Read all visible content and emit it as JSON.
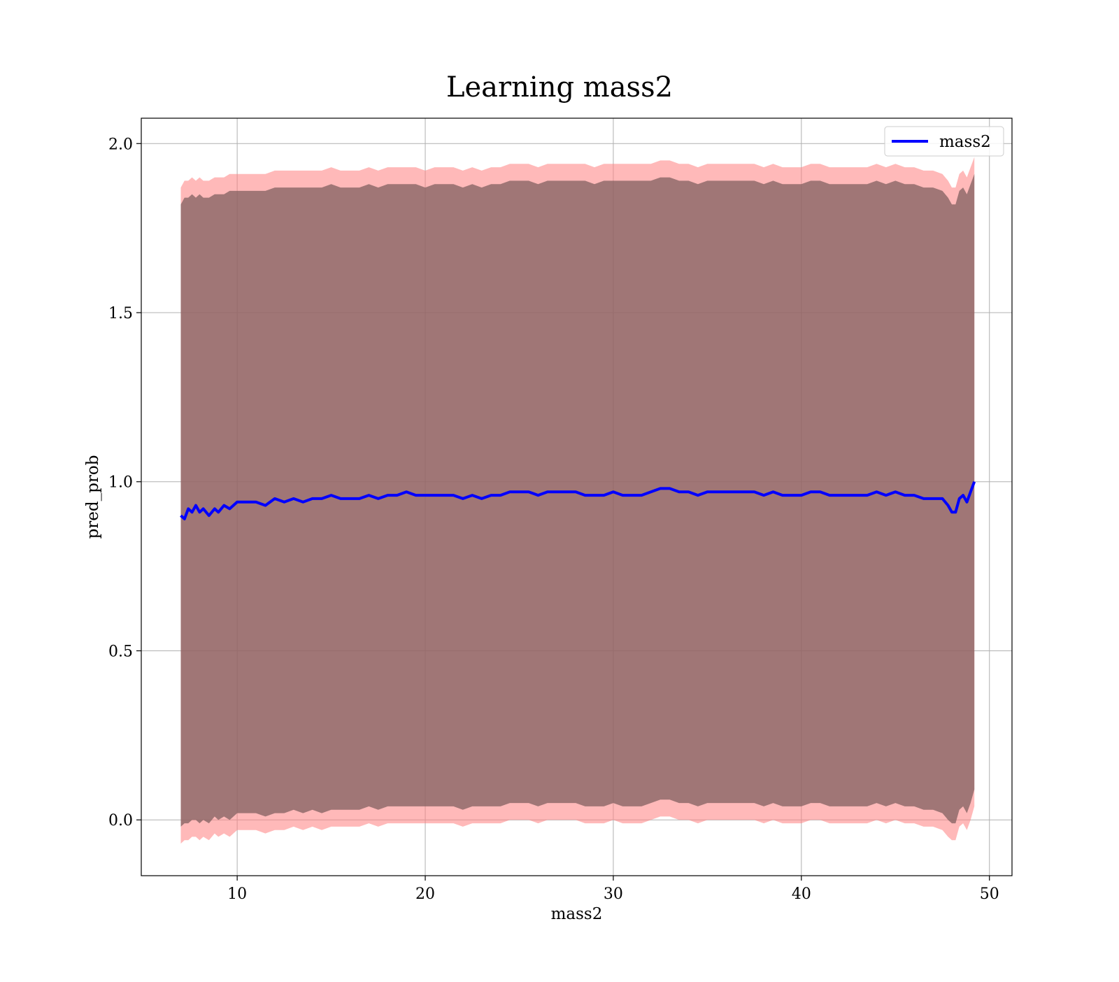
{
  "chart_data": {
    "type": "line",
    "title": "Learning mass2",
    "xlabel": "mass2",
    "ylabel": "pred_prob",
    "xlim": [
      4.9,
      51.2
    ],
    "ylim": [
      -0.165,
      2.075
    ],
    "xticks": [
      10,
      20,
      30,
      40,
      50
    ],
    "yticks": [
      0.0,
      0.5,
      1.0,
      1.5,
      2.0
    ],
    "xtick_labels": [
      "10",
      "20",
      "30",
      "40",
      "50"
    ],
    "ytick_labels": [
      "0.0",
      "0.5",
      "1.0",
      "1.5",
      "2.0"
    ],
    "grid": true,
    "legend_position": "top-right",
    "series": [
      {
        "name": "mass2",
        "color": "#0000ff",
        "x": [
          7.0,
          7.2,
          7.4,
          7.6,
          7.8,
          8.0,
          8.2,
          8.5,
          8.8,
          9.0,
          9.3,
          9.6,
          10.0,
          10.5,
          11.0,
          11.5,
          12.0,
          12.5,
          13.0,
          13.5,
          14.0,
          14.5,
          15.0,
          15.5,
          16.0,
          16.5,
          17.0,
          17.5,
          18.0,
          18.5,
          19.0,
          19.5,
          20.0,
          20.5,
          21.0,
          21.5,
          22.0,
          22.5,
          23.0,
          23.5,
          24.0,
          24.5,
          25.0,
          25.5,
          26.0,
          26.5,
          27.0,
          27.5,
          28.0,
          28.5,
          29.0,
          29.5,
          30.0,
          30.5,
          31.0,
          31.5,
          32.0,
          32.5,
          33.0,
          33.5,
          34.0,
          34.5,
          35.0,
          35.5,
          36.0,
          36.5,
          37.0,
          37.5,
          38.0,
          38.5,
          39.0,
          39.5,
          40.0,
          40.5,
          41.0,
          41.5,
          42.0,
          42.5,
          43.0,
          43.5,
          44.0,
          44.5,
          45.0,
          45.5,
          46.0,
          46.5,
          47.0,
          47.5,
          47.8,
          48.0,
          48.2,
          48.4,
          48.6,
          48.8,
          49.0,
          49.2
        ],
        "values": [
          0.9,
          0.89,
          0.92,
          0.91,
          0.93,
          0.91,
          0.92,
          0.9,
          0.92,
          0.91,
          0.93,
          0.92,
          0.94,
          0.94,
          0.94,
          0.93,
          0.95,
          0.94,
          0.95,
          0.94,
          0.95,
          0.95,
          0.96,
          0.95,
          0.95,
          0.95,
          0.96,
          0.95,
          0.96,
          0.96,
          0.97,
          0.96,
          0.96,
          0.96,
          0.96,
          0.96,
          0.95,
          0.96,
          0.95,
          0.96,
          0.96,
          0.97,
          0.97,
          0.97,
          0.96,
          0.97,
          0.97,
          0.97,
          0.97,
          0.96,
          0.96,
          0.96,
          0.97,
          0.96,
          0.96,
          0.96,
          0.97,
          0.98,
          0.98,
          0.97,
          0.97,
          0.96,
          0.97,
          0.97,
          0.97,
          0.97,
          0.97,
          0.97,
          0.96,
          0.97,
          0.96,
          0.96,
          0.96,
          0.97,
          0.97,
          0.96,
          0.96,
          0.96,
          0.96,
          0.96,
          0.97,
          0.96,
          0.97,
          0.96,
          0.96,
          0.95,
          0.95,
          0.95,
          0.93,
          0.91,
          0.91,
          0.95,
          0.96,
          0.94,
          0.97,
          1.0
        ],
        "band_outer": {
          "color": "#ff8080",
          "upper": [
            1.87,
            1.89,
            1.89,
            1.9,
            1.89,
            1.9,
            1.89,
            1.89,
            1.9,
            1.9,
            1.9,
            1.91,
            1.91,
            1.91,
            1.91,
            1.91,
            1.92,
            1.92,
            1.92,
            1.92,
            1.92,
            1.92,
            1.93,
            1.92,
            1.92,
            1.92,
            1.93,
            1.92,
            1.93,
            1.93,
            1.93,
            1.93,
            1.92,
            1.93,
            1.93,
            1.93,
            1.92,
            1.93,
            1.92,
            1.93,
            1.93,
            1.94,
            1.94,
            1.94,
            1.93,
            1.94,
            1.94,
            1.94,
            1.94,
            1.94,
            1.93,
            1.94,
            1.94,
            1.94,
            1.94,
            1.94,
            1.94,
            1.95,
            1.95,
            1.94,
            1.94,
            1.93,
            1.94,
            1.94,
            1.94,
            1.94,
            1.94,
            1.94,
            1.93,
            1.94,
            1.93,
            1.93,
            1.93,
            1.94,
            1.94,
            1.93,
            1.93,
            1.93,
            1.93,
            1.93,
            1.94,
            1.93,
            1.94,
            1.93,
            1.93,
            1.92,
            1.92,
            1.91,
            1.89,
            1.87,
            1.87,
            1.91,
            1.92,
            1.9,
            1.93,
            1.96
          ],
          "lower": [
            -0.07,
            -0.06,
            -0.06,
            -0.05,
            -0.05,
            -0.06,
            -0.05,
            -0.06,
            -0.04,
            -0.05,
            -0.04,
            -0.05,
            -0.03,
            -0.03,
            -0.03,
            -0.04,
            -0.03,
            -0.03,
            -0.02,
            -0.03,
            -0.02,
            -0.03,
            -0.02,
            -0.02,
            -0.02,
            -0.02,
            -0.01,
            -0.02,
            -0.01,
            -0.01,
            -0.01,
            -0.01,
            -0.01,
            -0.01,
            -0.01,
            -0.01,
            -0.02,
            -0.01,
            -0.01,
            -0.01,
            -0.01,
            0.0,
            0.0,
            0.0,
            -0.01,
            0.0,
            0.0,
            0.0,
            0.0,
            -0.01,
            -0.01,
            -0.01,
            0.0,
            -0.01,
            -0.01,
            -0.01,
            0.0,
            0.01,
            0.01,
            0.0,
            0.0,
            -0.01,
            0.0,
            0.0,
            0.0,
            0.0,
            0.0,
            0.0,
            -0.01,
            0.0,
            -0.01,
            -0.01,
            -0.01,
            0.0,
            0.0,
            -0.01,
            -0.01,
            -0.01,
            -0.01,
            -0.01,
            0.0,
            -0.01,
            0.0,
            -0.01,
            -0.01,
            -0.02,
            -0.02,
            -0.03,
            -0.05,
            -0.06,
            -0.06,
            -0.02,
            -0.01,
            -0.03,
            0.0,
            0.04
          ]
        },
        "band_inner": {
          "color": "#806060",
          "upper": [
            1.82,
            1.84,
            1.84,
            1.85,
            1.84,
            1.85,
            1.84,
            1.84,
            1.85,
            1.85,
            1.85,
            1.86,
            1.86,
            1.86,
            1.86,
            1.86,
            1.87,
            1.87,
            1.87,
            1.87,
            1.87,
            1.87,
            1.88,
            1.87,
            1.87,
            1.87,
            1.88,
            1.87,
            1.88,
            1.88,
            1.88,
            1.88,
            1.87,
            1.88,
            1.88,
            1.88,
            1.87,
            1.88,
            1.87,
            1.88,
            1.88,
            1.89,
            1.89,
            1.89,
            1.88,
            1.89,
            1.89,
            1.89,
            1.89,
            1.89,
            1.88,
            1.89,
            1.89,
            1.89,
            1.89,
            1.89,
            1.89,
            1.9,
            1.9,
            1.89,
            1.89,
            1.88,
            1.89,
            1.89,
            1.89,
            1.89,
            1.89,
            1.89,
            1.88,
            1.89,
            1.88,
            1.88,
            1.88,
            1.89,
            1.89,
            1.88,
            1.88,
            1.88,
            1.88,
            1.88,
            1.89,
            1.88,
            1.89,
            1.88,
            1.88,
            1.87,
            1.87,
            1.86,
            1.84,
            1.82,
            1.82,
            1.86,
            1.87,
            1.85,
            1.88,
            1.91
          ],
          "lower": [
            -0.02,
            -0.01,
            -0.01,
            0.0,
            0.0,
            -0.01,
            0.0,
            -0.01,
            0.01,
            0.0,
            0.01,
            0.0,
            0.02,
            0.02,
            0.02,
            0.01,
            0.02,
            0.02,
            0.03,
            0.02,
            0.03,
            0.02,
            0.03,
            0.03,
            0.03,
            0.03,
            0.04,
            0.03,
            0.04,
            0.04,
            0.04,
            0.04,
            0.04,
            0.04,
            0.04,
            0.04,
            0.03,
            0.04,
            0.04,
            0.04,
            0.04,
            0.05,
            0.05,
            0.05,
            0.04,
            0.05,
            0.05,
            0.05,
            0.05,
            0.04,
            0.04,
            0.04,
            0.05,
            0.04,
            0.04,
            0.04,
            0.05,
            0.06,
            0.06,
            0.05,
            0.05,
            0.04,
            0.05,
            0.05,
            0.05,
            0.05,
            0.05,
            0.05,
            0.04,
            0.05,
            0.04,
            0.04,
            0.04,
            0.05,
            0.05,
            0.04,
            0.04,
            0.04,
            0.04,
            0.04,
            0.05,
            0.04,
            0.05,
            0.04,
            0.04,
            0.03,
            0.03,
            0.02,
            0.0,
            -0.01,
            -0.01,
            0.03,
            0.04,
            0.02,
            0.05,
            0.09
          ]
        }
      }
    ]
  }
}
